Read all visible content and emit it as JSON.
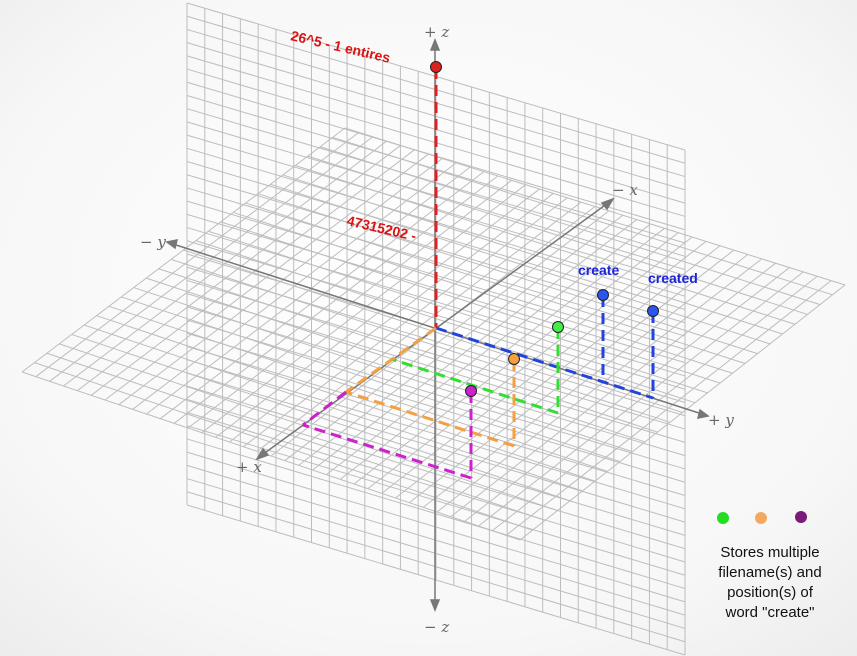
{
  "axes": {
    "pos_z": "+ z",
    "neg_z": "− z",
    "pos_x": "+ x",
    "neg_x": "− x",
    "pos_y": "+ y",
    "neg_y": "− y"
  },
  "labels": {
    "top_entries": "26^5 - 1 entires",
    "mid_value": "47315202 -",
    "create": "create",
    "created": "created"
  },
  "legend": {
    "line1": "Stores multiple",
    "line2": "filename(s) and",
    "line3": "position(s) of",
    "line4": "word \"create\""
  },
  "colors": {
    "red": "#dd2222",
    "blue": "#2244dd",
    "green": "#22cc22",
    "orange": "#f5a040",
    "purple": "#cc22cc",
    "legend_purple": "#7a1a7a",
    "grid": "#bdbdbd",
    "axis": "#777777"
  }
}
